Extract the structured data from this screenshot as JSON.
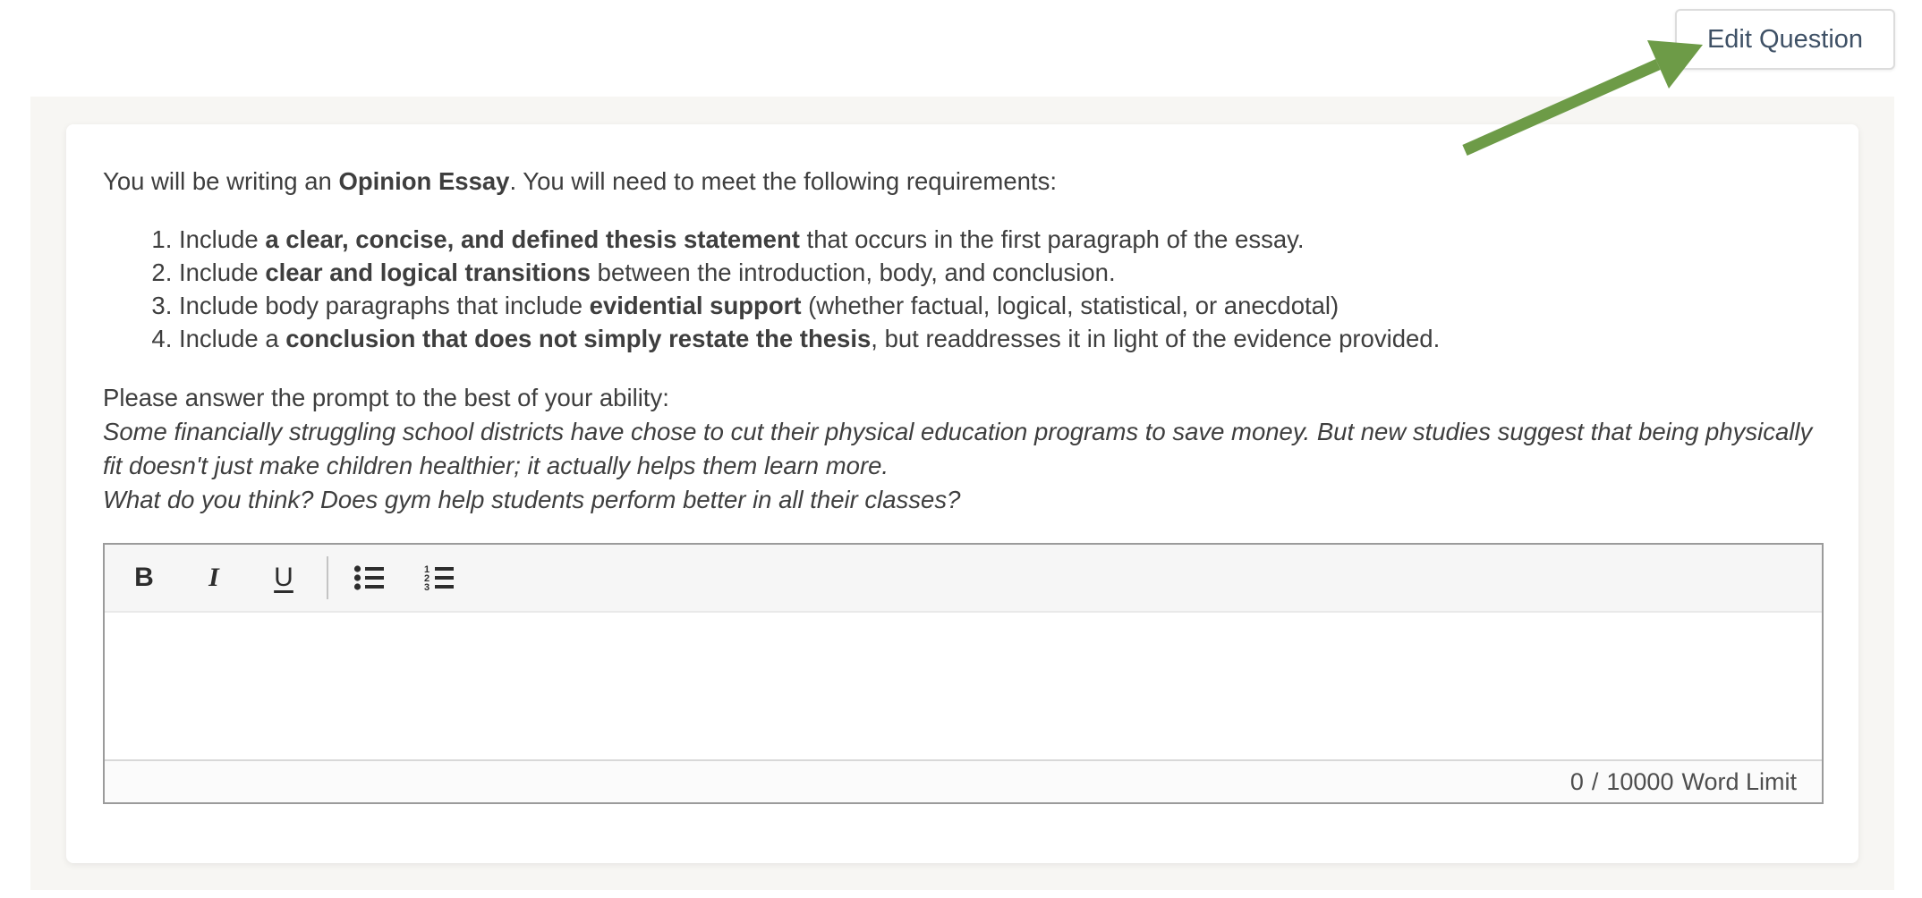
{
  "edit_button": {
    "label": "Edit Question"
  },
  "question": {
    "intro_segments": [
      {
        "text": "You will be writing an "
      },
      {
        "text": "Opinion Essay",
        "bold": true
      },
      {
        "text": ". You will need to meet the following requirements:"
      }
    ],
    "requirements": [
      {
        "segments": [
          {
            "text": "Include "
          },
          {
            "text": "a clear, concise, and defined thesis statement",
            "bold": true
          },
          {
            "text": " that occurs in the first paragraph of the essay."
          }
        ]
      },
      {
        "segments": [
          {
            "text": "Include "
          },
          {
            "text": "clear and logical transitions",
            "bold": true
          },
          {
            "text": " between the introduction, body, and conclusion."
          }
        ]
      },
      {
        "segments": [
          {
            "text": "Include body paragraphs that include "
          },
          {
            "text": "evidential support",
            "bold": true
          },
          {
            "text": " (whether factual, logical, statistical, or anecdotal)"
          }
        ]
      },
      {
        "segments": [
          {
            "text": "Include a "
          },
          {
            "text": "conclusion that does not simply restate the thesis",
            "bold": true
          },
          {
            "text": ", but readdresses it in light of the evidence provided."
          }
        ]
      }
    ],
    "prompt_lead": "Please answer the prompt to the best of your ability:",
    "prompt_paragraphs": [
      "Some financially struggling school districts have chose to cut their physical education programs to save money. But new studies suggest that being physically fit doesn't just make children healthier; it actually helps them learn more.",
      "What do you think? Does gym help students perform better in all their classes?"
    ]
  },
  "editor": {
    "content": "",
    "toolbar": {
      "buttons": [
        {
          "name": "bold",
          "glyph": "B"
        },
        {
          "name": "italic",
          "glyph": "I"
        },
        {
          "name": "underline",
          "glyph": "U"
        },
        {
          "name": "bullet-list",
          "icon": "bullet-list-icon"
        },
        {
          "name": "numbered-list",
          "icon": "numbered-list-icon"
        }
      ],
      "numbered_list_digits": [
        "1",
        "2",
        "3"
      ]
    },
    "footer": {
      "word_count": "0",
      "separator": "/",
      "word_limit": "10000",
      "label": "Word Limit"
    }
  },
  "colors": {
    "accent_green": "#6d9b47",
    "button_text": "#3f5166",
    "body_text": "#3e3e3e"
  }
}
